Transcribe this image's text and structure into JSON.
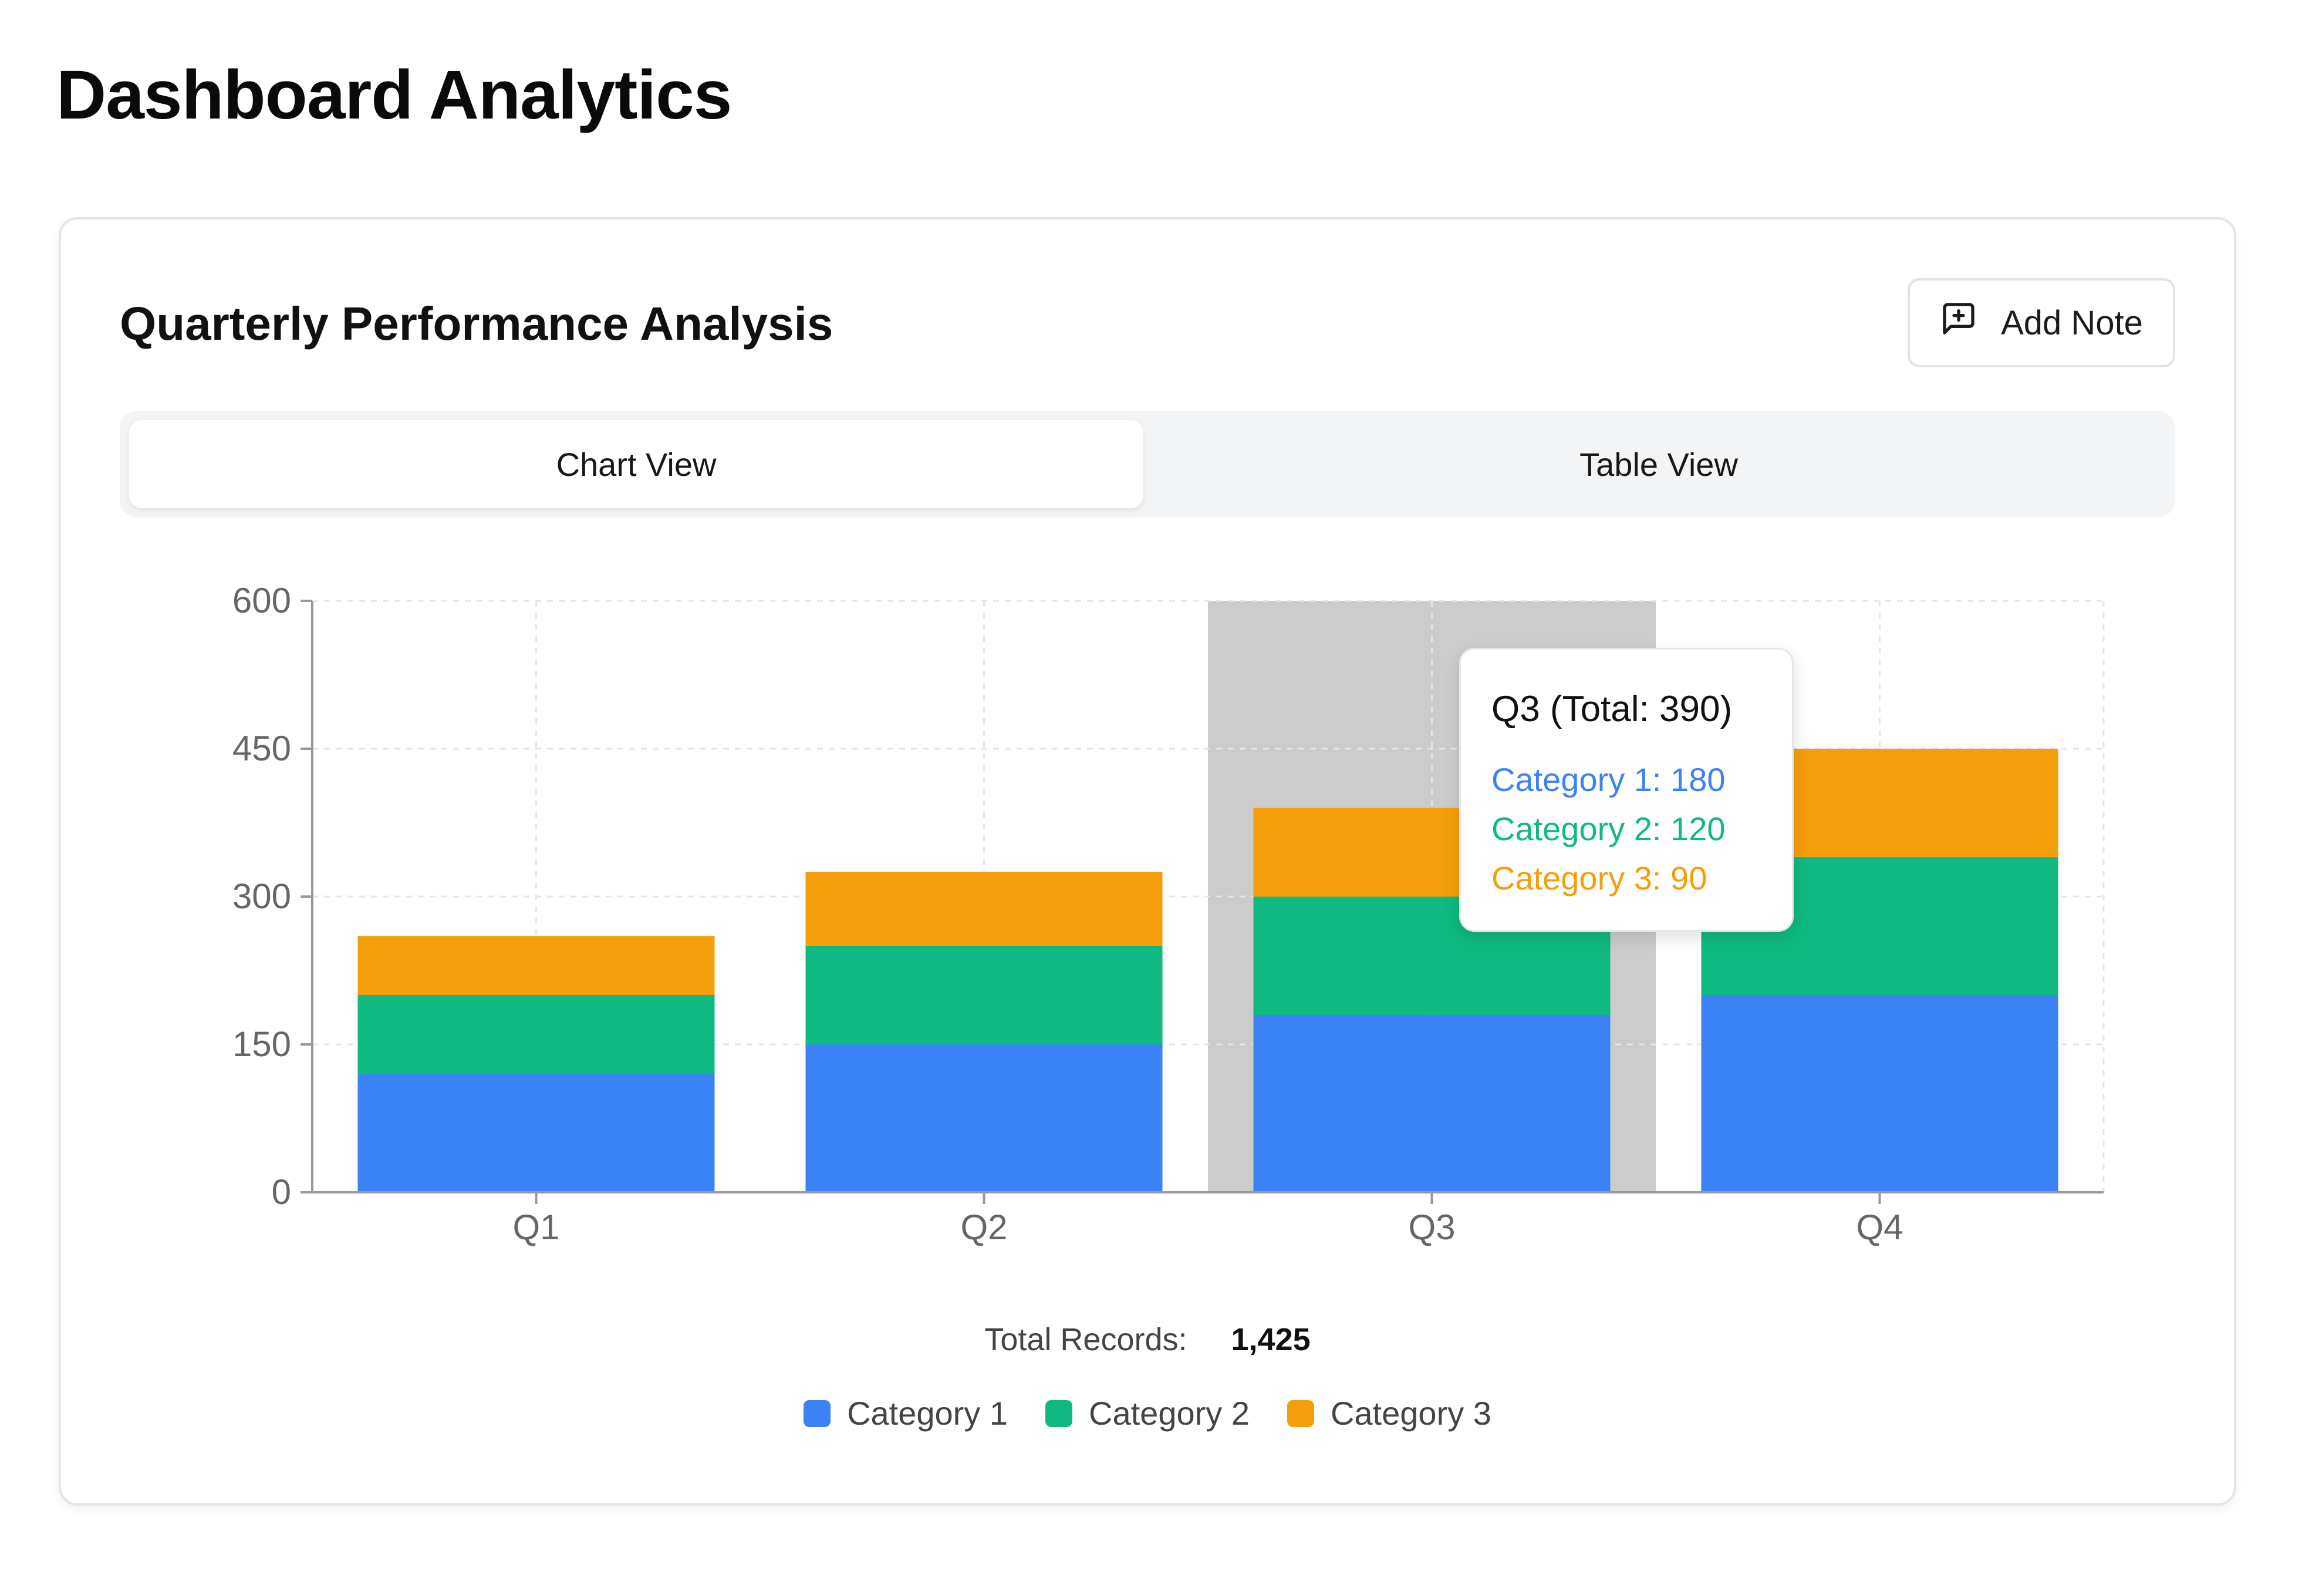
{
  "page": {
    "title": "Dashboard Analytics"
  },
  "card": {
    "title": "Quarterly Performance Analysis",
    "add_note_label": "Add Note",
    "tabs": [
      {
        "label": "Chart View",
        "active": true
      },
      {
        "label": "Table View",
        "active": false
      }
    ],
    "total_records_label": "Total Records:",
    "total_records_value": "1,425"
  },
  "tooltip": {
    "title": "Q3 (Total: 390)",
    "rows": [
      {
        "text": "Category 1: 180",
        "color": "#3b82f6"
      },
      {
        "text": "Category 2: 120",
        "color": "#10b981"
      },
      {
        "text": "Category 3: 90",
        "color": "#f59e0b"
      }
    ]
  },
  "icons": {
    "add_note": "message-square-plus-icon"
  },
  "chart_data": {
    "type": "bar",
    "stacked": true,
    "categories": [
      "Q1",
      "Q2",
      "Q3",
      "Q4"
    ],
    "series": [
      {
        "name": "Category 1",
        "values": [
          120,
          150,
          180,
          200
        ],
        "color": "#3b82f6"
      },
      {
        "name": "Category 2",
        "values": [
          80,
          100,
          120,
          140
        ],
        "color": "#10b981"
      },
      {
        "name": "Category 3",
        "values": [
          60,
          75,
          90,
          110
        ],
        "color": "#f59e0b"
      }
    ],
    "ylim": [
      0,
      600
    ],
    "yticks": [
      "0",
      "150",
      "300",
      "450",
      "600"
    ],
    "grid": true,
    "legend": "bottom",
    "highlighted_category": "Q3"
  }
}
